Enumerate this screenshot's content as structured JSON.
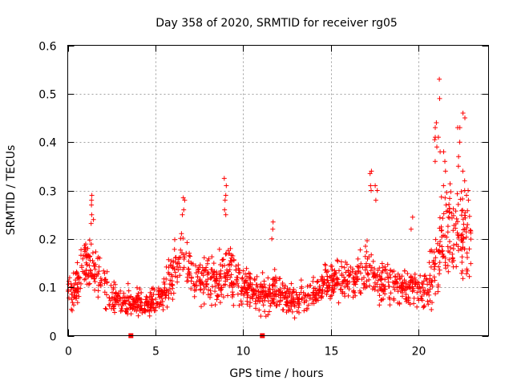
{
  "chart_data": {
    "type": "scatter",
    "title": "Day 358 of 2020, SRMTID for receiver rg05",
    "xlabel": "GPS time / hours",
    "ylabel": "SRMTID / TECUs",
    "xlim": [
      0,
      24
    ],
    "ylim": [
      0,
      0.6
    ],
    "x_ticks": [
      0,
      5,
      10,
      15,
      20
    ],
    "x_tick_labels": [
      "0",
      "5",
      "10",
      "15",
      "20"
    ],
    "y_ticks": [
      0,
      0.1,
      0.2,
      0.3,
      0.4,
      0.5,
      0.6
    ],
    "y_tick_labels": [
      "0",
      "0.1",
      "0.2",
      "0.3",
      "0.4",
      "0.5",
      "0.6"
    ],
    "grid": true,
    "marker": "plus",
    "color": "#ff0000",
    "data_range_hours": [
      0,
      23
    ],
    "zero_markers_x": [
      3.6,
      11.1
    ],
    "envelope": {
      "x": [
        0,
        0.5,
        0.8,
        1.0,
        1.4,
        2.0,
        2.5,
        3.0,
        3.5,
        4.0,
        4.5,
        5.0,
        5.5,
        6.0,
        6.5,
        7.0,
        7.5,
        8.0,
        8.5,
        9.0,
        9.5,
        10.0,
        10.5,
        11.0,
        11.5,
        12.0,
        12.5,
        13.0,
        13.5,
        14.0,
        14.5,
        15.0,
        15.5,
        16.0,
        16.5,
        17.0,
        17.5,
        18.0,
        18.5,
        19.0,
        19.5,
        20.0,
        20.5,
        21.0,
        21.5,
        22.0,
        22.5,
        23.0
      ],
      "center": [
        0.09,
        0.1,
        0.14,
        0.15,
        0.15,
        0.11,
        0.08,
        0.07,
        0.07,
        0.065,
        0.065,
        0.07,
        0.09,
        0.13,
        0.16,
        0.13,
        0.11,
        0.12,
        0.11,
        0.15,
        0.12,
        0.1,
        0.1,
        0.08,
        0.08,
        0.1,
        0.08,
        0.07,
        0.08,
        0.09,
        0.1,
        0.11,
        0.12,
        0.11,
        0.12,
        0.13,
        0.12,
        0.11,
        0.11,
        0.1,
        0.1,
        0.1,
        0.1,
        0.16,
        0.22,
        0.22,
        0.21,
        0.18
      ],
      "spread": [
        0.04,
        0.05,
        0.06,
        0.07,
        0.07,
        0.05,
        0.04,
        0.03,
        0.03,
        0.03,
        0.03,
        0.03,
        0.04,
        0.06,
        0.06,
        0.05,
        0.05,
        0.05,
        0.05,
        0.07,
        0.05,
        0.04,
        0.04,
        0.04,
        0.04,
        0.05,
        0.04,
        0.03,
        0.04,
        0.04,
        0.04,
        0.05,
        0.05,
        0.04,
        0.05,
        0.06,
        0.05,
        0.05,
        0.05,
        0.04,
        0.04,
        0.04,
        0.05,
        0.1,
        0.12,
        0.11,
        0.1,
        0.08
      ]
    },
    "spikes": [
      {
        "x": 1.4,
        "y": [
          0.29,
          0.28,
          0.27,
          0.25,
          0.24
        ]
      },
      {
        "x": 6.6,
        "y": [
          0.285,
          0.28,
          0.26,
          0.25
        ]
      },
      {
        "x": 9.0,
        "y": [
          0.325,
          0.31,
          0.29,
          0.28,
          0.26,
          0.25
        ]
      },
      {
        "x": 11.7,
        "y": [
          0.235,
          0.22,
          0.2
        ]
      },
      {
        "x": 17.3,
        "y": [
          0.34,
          0.335,
          0.31,
          0.3
        ]
      },
      {
        "x": 17.6,
        "y": [
          0.31,
          0.3,
          0.28
        ]
      },
      {
        "x": 19.6,
        "y": [
          0.245,
          0.22
        ]
      },
      {
        "x": 21.0,
        "y": [
          0.44,
          0.43,
          0.41,
          0.405,
          0.39,
          0.36
        ]
      },
      {
        "x": 21.2,
        "y": [
          0.53,
          0.49,
          0.41,
          0.38
        ]
      },
      {
        "x": 21.5,
        "y": [
          0.38,
          0.36,
          0.34,
          0.31
        ]
      },
      {
        "x": 22.3,
        "y": [
          0.43,
          0.43,
          0.4,
          0.37,
          0.35
        ]
      },
      {
        "x": 22.6,
        "y": [
          0.46,
          0.45,
          0.34,
          0.32,
          0.3
        ]
      },
      {
        "x": 22.8,
        "y": [
          0.3,
          0.29,
          0.28
        ]
      }
    ],
    "approx_point_count": 1500
  }
}
